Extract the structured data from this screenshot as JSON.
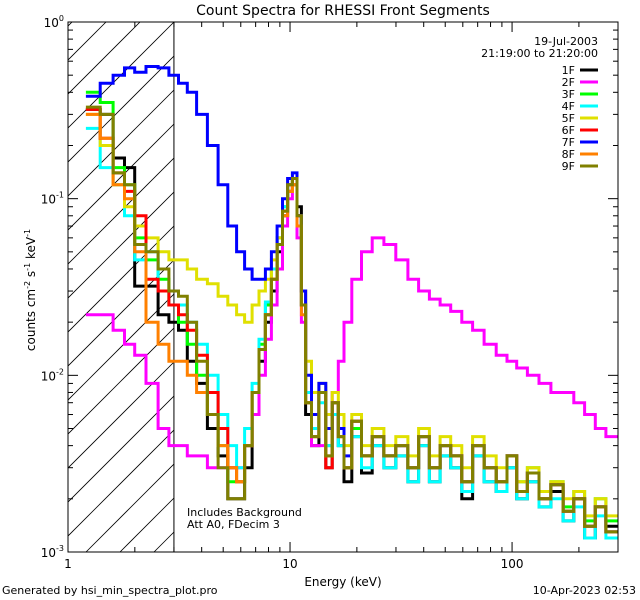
{
  "chart_data": {
    "type": "line",
    "title": "Count Spectra for RHESSI Front Segments",
    "xlabel": "Energy (keV)",
    "ylabel_parts": [
      "counts cm",
      "-2",
      " s",
      "-1",
      " keV",
      "-1"
    ],
    "xscale": "log",
    "yscale": "log",
    "xlim": [
      1,
      300
    ],
    "ylim": [
      0.001,
      1
    ],
    "x_ticks": [
      {
        "value": 1,
        "label": "1"
      },
      {
        "value": 10,
        "label": "10"
      },
      {
        "value": 100,
        "label": "100"
      }
    ],
    "y_ticks": [
      {
        "value": 0.001,
        "base": "10",
        "exp": "-3"
      },
      {
        "value": 0.01,
        "base": "10",
        "exp": "-2"
      },
      {
        "value": 0.1,
        "base": "10",
        "exp": "-1"
      },
      {
        "value": 1,
        "base": "10",
        "exp": "0"
      }
    ],
    "date": "19-Jul-2003",
    "time_range": "21:19:00 to 21:20:00",
    "annotation_lines": [
      "Includes Background",
      "Att A0, FDecim 3"
    ],
    "hatch_xmax": 3,
    "legend_position": "top-right",
    "series": [
      {
        "name": "1F",
        "color": "#000000",
        "x": [
          1.3,
          1.5,
          1.7,
          1.9,
          2.1,
          2.4,
          2.7,
          3,
          3.3,
          3.6,
          4,
          4.5,
          5,
          5.5,
          6,
          6.5,
          7,
          7.5,
          8,
          8.5,
          9,
          9.5,
          10,
          10.5,
          11,
          11.5,
          12,
          13,
          14,
          15,
          16,
          17,
          18,
          20,
          22,
          25,
          28,
          32,
          36,
          40,
          45,
          50,
          56,
          63,
          70,
          80,
          90,
          100,
          110,
          125,
          140,
          160,
          180,
          200,
          225,
          250,
          280
        ],
        "y": [
          0.32,
          0.3,
          0.17,
          0.15,
          0.032,
          0.032,
          0.022,
          0.02,
          0.018,
          0.012,
          0.009,
          0.005,
          0.0035,
          0.002,
          0.002,
          0.003,
          0.006,
          0.012,
          0.02,
          0.03,
          0.05,
          0.08,
          0.11,
          0.12,
          0.09,
          0.03,
          0.006,
          0.004,
          0.008,
          0.003,
          0.006,
          0.004,
          0.0025,
          0.0045,
          0.0028,
          0.004,
          0.003,
          0.0035,
          0.0025,
          0.004,
          0.0025,
          0.0035,
          0.003,
          0.002,
          0.0035,
          0.0025,
          0.0022,
          0.003,
          0.002,
          0.0025,
          0.0018,
          0.0022,
          0.0015,
          0.002,
          0.0012,
          0.0018,
          0.0014
        ]
      },
      {
        "name": "2F",
        "color": "#ff00ff",
        "x": [
          1.3,
          1.5,
          1.7,
          1.9,
          2.1,
          2.4,
          2.7,
          3,
          3.3,
          3.6,
          4,
          4.5,
          5,
          5.5,
          6,
          6.5,
          7,
          7.5,
          8,
          8.5,
          9,
          9.5,
          10,
          10.5,
          11,
          11.5,
          12,
          13,
          14,
          15,
          16,
          17,
          18,
          20,
          22,
          25,
          28,
          32,
          36,
          40,
          45,
          50,
          56,
          63,
          70,
          80,
          90,
          100,
          110,
          125,
          140,
          160,
          180,
          200,
          225,
          250,
          280
        ],
        "y": [
          0.022,
          0.022,
          0.018,
          0.015,
          0.013,
          0.009,
          0.005,
          0.004,
          0.004,
          0.0035,
          0.0035,
          0.003,
          0.003,
          0.003,
          0.003,
          0.004,
          0.006,
          0.01,
          0.016,
          0.025,
          0.04,
          0.07,
          0.1,
          0.12,
          0.06,
          0.02,
          0.008,
          0.004,
          0.004,
          0.006,
          0.008,
          0.012,
          0.02,
          0.035,
          0.05,
          0.06,
          0.055,
          0.045,
          0.035,
          0.03,
          0.027,
          0.025,
          0.023,
          0.02,
          0.018,
          0.015,
          0.013,
          0.012,
          0.011,
          0.01,
          0.009,
          0.008,
          0.008,
          0.007,
          0.006,
          0.005,
          0.0045
        ]
      },
      {
        "name": "3F",
        "color": "#00ff00",
        "x": [
          1.3,
          1.5,
          1.7,
          1.9,
          2.1,
          2.4,
          2.7,
          3,
          3.3,
          3.6,
          4,
          4.5,
          5,
          5.5,
          6,
          6.5,
          7,
          7.5,
          8,
          8.5,
          9,
          9.5,
          10,
          10.5,
          11,
          11.5,
          12,
          13,
          14,
          15,
          16,
          17,
          18,
          20,
          22,
          25,
          28,
          32,
          36,
          40,
          45,
          50,
          56,
          63,
          70,
          80,
          90,
          100,
          110,
          125,
          140,
          160,
          180,
          200,
          225,
          250,
          280
        ],
        "y": [
          0.4,
          0.35,
          0.15,
          0.12,
          0.06,
          0.045,
          0.035,
          0.025,
          0.02,
          0.015,
          0.01,
          0.006,
          0.004,
          0.0025,
          0.0025,
          0.004,
          0.008,
          0.015,
          0.025,
          0.04,
          0.06,
          0.09,
          0.12,
          0.13,
          0.08,
          0.025,
          0.007,
          0.005,
          0.008,
          0.004,
          0.007,
          0.005,
          0.003,
          0.005,
          0.0035,
          0.0045,
          0.0035,
          0.004,
          0.003,
          0.0045,
          0.003,
          0.004,
          0.0035,
          0.0025,
          0.004,
          0.003,
          0.0025,
          0.0035,
          0.0025,
          0.003,
          0.002,
          0.0025,
          0.0018,
          0.0022,
          0.0015,
          0.002,
          0.0015
        ]
      },
      {
        "name": "4F",
        "color": "#00ffff",
        "x": [
          1.3,
          1.5,
          1.7,
          1.9,
          2.1,
          2.4,
          2.7,
          3,
          3.3,
          3.6,
          4,
          4.5,
          5,
          5.5,
          6,
          6.5,
          7,
          7.5,
          8,
          8.5,
          9,
          9.5,
          10,
          10.5,
          11,
          11.5,
          12,
          13,
          14,
          15,
          16,
          17,
          18,
          20,
          22,
          25,
          28,
          32,
          36,
          40,
          45,
          50,
          56,
          63,
          70,
          80,
          90,
          100,
          110,
          125,
          140,
          160,
          180,
          200,
          225,
          250,
          280
        ],
        "y": [
          0.25,
          0.15,
          0.12,
          0.08,
          0.045,
          0.05,
          0.03,
          0.025,
          0.025,
          0.02,
          0.015,
          0.01,
          0.006,
          0.004,
          0.003,
          0.005,
          0.009,
          0.016,
          0.026,
          0.04,
          0.06,
          0.09,
          0.12,
          0.13,
          0.08,
          0.025,
          0.008,
          0.005,
          0.007,
          0.004,
          0.006,
          0.004,
          0.003,
          0.0045,
          0.003,
          0.004,
          0.003,
          0.0035,
          0.0025,
          0.004,
          0.0025,
          0.0035,
          0.003,
          0.0022,
          0.0035,
          0.0025,
          0.0022,
          0.003,
          0.002,
          0.0025,
          0.0018,
          0.002,
          0.0015,
          0.0018,
          0.0012,
          0.0016,
          0.0012
        ]
      },
      {
        "name": "5F",
        "color": "#e0e000",
        "x": [
          1.3,
          1.5,
          1.7,
          1.9,
          2.1,
          2.4,
          2.7,
          3,
          3.3,
          3.6,
          4,
          4.5,
          5,
          5.5,
          6,
          6.5,
          7,
          7.5,
          8,
          8.5,
          9,
          9.5,
          10,
          10.5,
          11,
          11.5,
          12,
          13,
          14,
          15,
          16,
          17,
          18,
          20,
          22,
          25,
          28,
          32,
          36,
          40,
          45,
          50,
          56,
          63,
          70,
          80,
          90,
          100,
          110,
          125,
          140,
          160,
          180,
          200,
          225,
          250,
          280
        ],
        "y": [
          0.3,
          0.2,
          0.12,
          0.09,
          0.07,
          0.06,
          0.05,
          0.045,
          0.045,
          0.04,
          0.035,
          0.033,
          0.028,
          0.025,
          0.022,
          0.02,
          0.025,
          0.03,
          0.035,
          0.045,
          0.06,
          0.085,
          0.11,
          0.12,
          0.07,
          0.03,
          0.012,
          0.008,
          0.009,
          0.006,
          0.008,
          0.006,
          0.004,
          0.006,
          0.004,
          0.005,
          0.004,
          0.0045,
          0.0035,
          0.005,
          0.0035,
          0.0045,
          0.004,
          0.003,
          0.0045,
          0.0035,
          0.003,
          0.0035,
          0.0025,
          0.003,
          0.0022,
          0.0025,
          0.002,
          0.0022,
          0.0016,
          0.002,
          0.0016
        ]
      },
      {
        "name": "6F",
        "color": "#ff0000",
        "x": [
          1.3,
          1.5,
          1.7,
          1.9,
          2.1,
          2.4,
          2.7,
          3,
          3.3,
          3.6,
          4,
          4.5,
          5,
          5.5,
          6,
          6.5,
          7,
          7.5,
          8,
          8.5,
          9,
          9.5,
          10,
          10.5,
          11,
          11.5,
          12,
          13,
          14,
          15,
          16,
          17,
          18,
          20,
          22,
          25,
          28,
          32,
          36,
          40,
          45,
          50,
          56,
          63,
          70,
          80,
          90,
          100,
          110,
          125,
          140,
          160,
          180,
          200,
          225,
          250,
          280
        ],
        "y": [
          0.32,
          0.22,
          0.14,
          0.11,
          0.08,
          0.035,
          0.03,
          0.025,
          0.022,
          0.018,
          0.013,
          0.008,
          0.005,
          0.003,
          0.0025,
          0.004,
          0.008,
          0.014,
          0.022,
          0.035,
          0.055,
          0.085,
          0.12,
          0.13,
          0.08,
          0.025,
          0.007,
          0.0045,
          0.008,
          0.003,
          0.007,
          0.0045,
          0.003,
          0.0055,
          0.0035,
          0.0045,
          0.0035,
          0.004,
          0.003,
          0.0045,
          0.003,
          0.004,
          0.0035,
          0.0025,
          0.004,
          0.003,
          0.0025,
          0.0035,
          0.0022,
          0.0028,
          0.002,
          0.0024,
          0.0017,
          0.002,
          0.0014,
          0.0018,
          0.0013
        ]
      },
      {
        "name": "7F",
        "color": "#0000ff",
        "x": [
          1.3,
          1.5,
          1.7,
          1.9,
          2.1,
          2.4,
          2.7,
          3,
          3.3,
          3.6,
          4,
          4.5,
          5,
          5.5,
          6,
          6.5,
          7,
          7.5,
          8,
          8.5,
          9,
          9.5,
          10,
          10.5,
          11,
          11.5,
          12,
          13,
          14,
          15,
          16,
          17,
          18,
          20,
          22,
          25,
          28,
          32,
          36,
          40,
          45,
          50,
          56,
          63,
          70,
          80,
          90,
          100,
          110,
          125,
          140,
          160,
          180,
          200,
          225,
          250,
          280
        ],
        "y": [
          0.38,
          0.45,
          0.5,
          0.55,
          0.52,
          0.56,
          0.55,
          0.5,
          0.45,
          0.4,
          0.3,
          0.2,
          0.12,
          0.07,
          0.05,
          0.04,
          0.035,
          0.035,
          0.04,
          0.05,
          0.07,
          0.1,
          0.13,
          0.14,
          0.08,
          0.03,
          0.01,
          0.006,
          0.009,
          0.005,
          0.007,
          0.005,
          0.0035,
          0.0055,
          0.0035,
          0.0045,
          0.0035,
          0.004,
          0.003,
          0.0045,
          0.003,
          0.004,
          0.0035,
          0.0025,
          0.004,
          0.003,
          0.0025,
          0.0035,
          0.0022,
          0.0028,
          0.002,
          0.0024,
          0.0017,
          0.002,
          0.0014,
          0.0018,
          0.0013
        ]
      },
      {
        "name": "8F",
        "color": "#ff8000",
        "x": [
          1.3,
          1.5,
          1.7,
          1.9,
          2.1,
          2.4,
          2.7,
          3,
          3.3,
          3.6,
          4,
          4.5,
          5,
          5.5,
          6,
          6.5,
          7,
          7.5,
          8,
          8.5,
          9,
          9.5,
          10,
          10.5,
          11,
          11.5,
          12,
          13,
          14,
          15,
          16,
          17,
          18,
          20,
          22,
          25,
          28,
          32,
          36,
          40,
          45,
          50,
          56,
          63,
          70,
          80,
          90,
          100,
          110,
          125,
          140,
          160,
          180,
          200,
          225,
          250,
          280
        ],
        "y": [
          0.3,
          0.22,
          0.12,
          0.1,
          0.05,
          0.02,
          0.015,
          0.012,
          0.012,
          0.01,
          0.008,
          0.006,
          0.004,
          0.003,
          0.0025,
          0.004,
          0.008,
          0.014,
          0.022,
          0.035,
          0.055,
          0.08,
          0.11,
          0.12,
          0.07,
          0.022,
          0.007,
          0.0045,
          0.008,
          0.0035,
          0.007,
          0.0045,
          0.003,
          0.0055,
          0.0035,
          0.0045,
          0.0035,
          0.004,
          0.003,
          0.0045,
          0.003,
          0.004,
          0.0035,
          0.0025,
          0.004,
          0.003,
          0.0025,
          0.0035,
          0.0022,
          0.0028,
          0.002,
          0.0024,
          0.0017,
          0.002,
          0.0014,
          0.0018,
          0.0013
        ]
      },
      {
        "name": "9F",
        "color": "#808000",
        "x": [
          1.3,
          1.5,
          1.7,
          1.9,
          2.1,
          2.4,
          2.7,
          3,
          3.3,
          3.6,
          4,
          4.5,
          5,
          5.5,
          6,
          6.5,
          7,
          7.5,
          8,
          8.5,
          9,
          9.5,
          10,
          10.5,
          11,
          11.5,
          12,
          13,
          14,
          15,
          16,
          17,
          18,
          20,
          22,
          25,
          28,
          32,
          36,
          40,
          45,
          50,
          56,
          63,
          70,
          80,
          90,
          100,
          110,
          125,
          140,
          160,
          180,
          200,
          225,
          250,
          280
        ],
        "y": [
          0.33,
          0.3,
          0.14,
          0.12,
          0.055,
          0.05,
          0.04,
          0.03,
          0.028,
          0.02,
          0.012,
          0.006,
          0.003,
          0.002,
          0.002,
          0.004,
          0.008,
          0.014,
          0.022,
          0.035,
          0.055,
          0.085,
          0.12,
          0.13,
          0.08,
          0.025,
          0.007,
          0.0045,
          0.008,
          0.0035,
          0.007,
          0.0045,
          0.003,
          0.0055,
          0.0035,
          0.0045,
          0.0035,
          0.004,
          0.003,
          0.0045,
          0.003,
          0.004,
          0.0035,
          0.0025,
          0.004,
          0.003,
          0.0025,
          0.0035,
          0.0022,
          0.0028,
          0.002,
          0.0024,
          0.0017,
          0.002,
          0.0014,
          0.0018,
          0.0013
        ]
      }
    ]
  },
  "footer": {
    "generated_by": "Generated by hsi_min_spectra_plot.pro",
    "timestamp": "10-Apr-2023 02:53"
  }
}
